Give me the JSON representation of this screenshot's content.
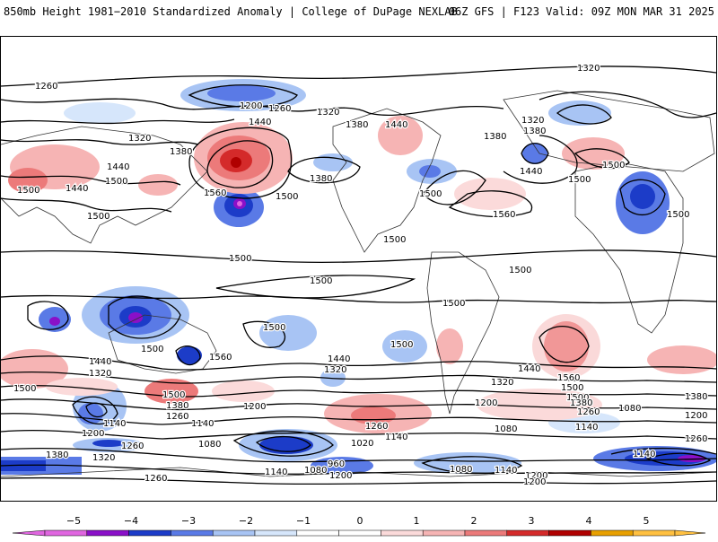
{
  "header": {
    "title": "850mb Height 1981−2010 Standardized Anomaly | College of DuPage NEXLAB",
    "run_info": "06Z GFS | F123 Valid: 09Z MON MAR 31 2025"
  },
  "map": {
    "contour_labels": [
      "1320",
      "1260",
      "1200",
      "1260",
      "1320",
      "1440",
      "1320",
      "1380",
      "1440",
      "1380",
      "1320",
      "1440",
      "1500",
      "1380",
      "1440",
      "1500",
      "1380",
      "1500",
      "1560",
      "1500",
      "1500",
      "1380",
      "1500",
      "1560",
      "1500",
      "1440",
      "1500",
      "1500",
      "1500",
      "1500",
      "1500",
      "1500",
      "1500",
      "1500",
      "1560",
      "1500",
      "1440",
      "1320",
      "1440",
      "1500",
      "1500",
      "1440",
      "1560",
      "1500",
      "1380",
      "1320",
      "1500",
      "1380",
      "1260",
      "1260",
      "1320",
      "1200",
      "1140",
      "1140",
      "1200",
      "1080",
      "1260",
      "1380",
      "1320",
      "1260",
      "1200",
      "1140",
      "1080",
      "1020",
      "960",
      "1200",
      "1140",
      "1080",
      "1080",
      "1140",
      "1200",
      "1080",
      "1140",
      "1200",
      "1380",
      "1260",
      "1260",
      "1140",
      "1200"
    ],
    "anomaly_colors": {
      "neg5": "#e066e0",
      "neg4": "#8a10c8",
      "neg3": "#1c3cc8",
      "neg2": "#5a7ae6",
      "neg1": "#a8c4f4",
      "neg_light": "#d6e6fb",
      "pos_light": "#fbdada",
      "pos1": "#f6b4b4",
      "pos2": "#ec7a7a",
      "pos3": "#d42a2a",
      "pos4": "#b00000",
      "pos5": "#ff9900"
    }
  },
  "colorbar": {
    "ticks": [
      "−5",
      "−4",
      "−3",
      "−2",
      "−1",
      "0",
      "1",
      "2",
      "3",
      "4",
      "5"
    ],
    "colors": [
      "#e066e0",
      "#8a10c8",
      "#1c3cc8",
      "#5a7ae6",
      "#a8c4f4",
      "#d6e6fb",
      "#ffffff",
      "#ffffff",
      "#fbdada",
      "#f6b4b4",
      "#ec7a7a",
      "#d42a2a",
      "#b00000",
      "#e8a000",
      "#ffc040"
    ]
  }
}
